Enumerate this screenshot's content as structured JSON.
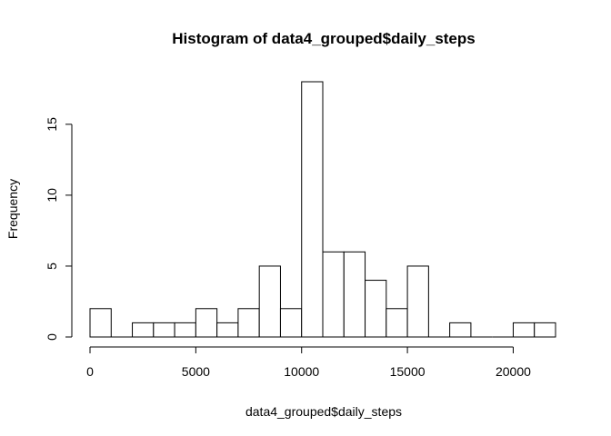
{
  "chart_data": {
    "type": "bar",
    "title": "Histogram of data4_grouped$daily_steps",
    "xlabel": "data4_grouped$daily_steps",
    "ylabel": "Frequency",
    "bin_width": 1000,
    "bins": [
      {
        "start": 0,
        "end": 1000,
        "count": 2
      },
      {
        "start": 1000,
        "end": 2000,
        "count": 0
      },
      {
        "start": 2000,
        "end": 3000,
        "count": 1
      },
      {
        "start": 3000,
        "end": 4000,
        "count": 1
      },
      {
        "start": 4000,
        "end": 5000,
        "count": 1
      },
      {
        "start": 5000,
        "end": 6000,
        "count": 2
      },
      {
        "start": 6000,
        "end": 7000,
        "count": 1
      },
      {
        "start": 7000,
        "end": 8000,
        "count": 2
      },
      {
        "start": 8000,
        "end": 9000,
        "count": 5
      },
      {
        "start": 9000,
        "end": 10000,
        "count": 2
      },
      {
        "start": 10000,
        "end": 11000,
        "count": 18
      },
      {
        "start": 11000,
        "end": 12000,
        "count": 6
      },
      {
        "start": 12000,
        "end": 13000,
        "count": 6
      },
      {
        "start": 13000,
        "end": 14000,
        "count": 4
      },
      {
        "start": 14000,
        "end": 15000,
        "count": 2
      },
      {
        "start": 15000,
        "end": 16000,
        "count": 5
      },
      {
        "start": 16000,
        "end": 17000,
        "count": 0
      },
      {
        "start": 17000,
        "end": 18000,
        "count": 1
      },
      {
        "start": 18000,
        "end": 19000,
        "count": 0
      },
      {
        "start": 19000,
        "end": 20000,
        "count": 0
      },
      {
        "start": 20000,
        "end": 21000,
        "count": 1
      },
      {
        "start": 21000,
        "end": 22000,
        "count": 1
      }
    ],
    "xlim": [
      0,
      22000
    ],
    "ylim": [
      0,
      18
    ],
    "x_ticks": [
      0,
      5000,
      10000,
      15000,
      20000
    ],
    "x_tick_labels": [
      "0",
      "5000",
      "10000",
      "15000",
      "20000"
    ],
    "y_ticks": [
      0,
      5,
      10,
      15
    ],
    "y_tick_labels": [
      "0",
      "5",
      "10",
      "15"
    ],
    "grid": false,
    "legend": "none"
  }
}
